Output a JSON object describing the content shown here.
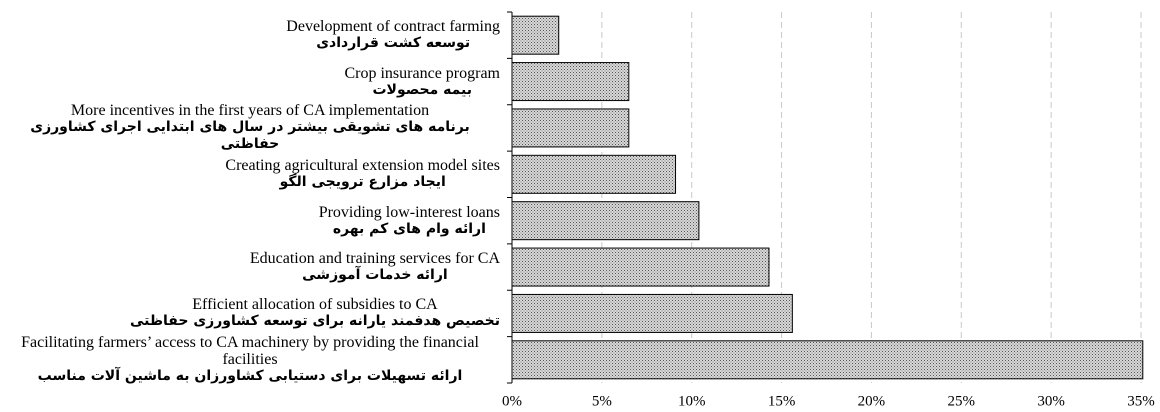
{
  "chart_data": {
    "type": "barh",
    "categories": [
      "Development of contract farming",
      "Crop insurance program",
      "More incentives in the first years of CA implementation",
      "Creating agricultural extension model sites",
      "Providing low-interest loans",
      "Education and training services for CA",
      "Efficient allocation of subsidies to CA",
      "Facilitating farmers’ access to CA machinery by providing the financial facilities"
    ],
    "category_translations": [
      "توسعه کشت قراردادی",
      "بیمه محصولات",
      "برنامه های تشویقی بیشتر در سال های ابتدایی اجرای کشاورزی حفاظتی",
      "ایجاد مزارع ترویجی الگو",
      "ارائه وام های کم بهره",
      "ارائه خدمات آموزشی",
      "تخصیص هدفمند یارانه برای توسعه کشاورزی حفاظتی",
      "ارائه تسهیلات برای دستیابی کشاورزان به ماشین آلات مناسب"
    ],
    "values": [
      2.6,
      6.5,
      6.5,
      9.1,
      10.4,
      14.3,
      15.6,
      35.1
    ],
    "color": "#b0b0b0",
    "xlim": [
      0,
      35
    ],
    "xticks": [
      {
        "value": 0,
        "label": "0%"
      },
      {
        "value": 5,
        "label": "5%"
      },
      {
        "value": 10,
        "label": "10%"
      },
      {
        "value": 15,
        "label": "15%"
      },
      {
        "value": 20,
        "label": "20%"
      },
      {
        "value": 25,
        "label": "25%"
      },
      {
        "value": 30,
        "label": "30%"
      },
      {
        "value": 35,
        "label": "35%"
      }
    ],
    "grid": true
  }
}
